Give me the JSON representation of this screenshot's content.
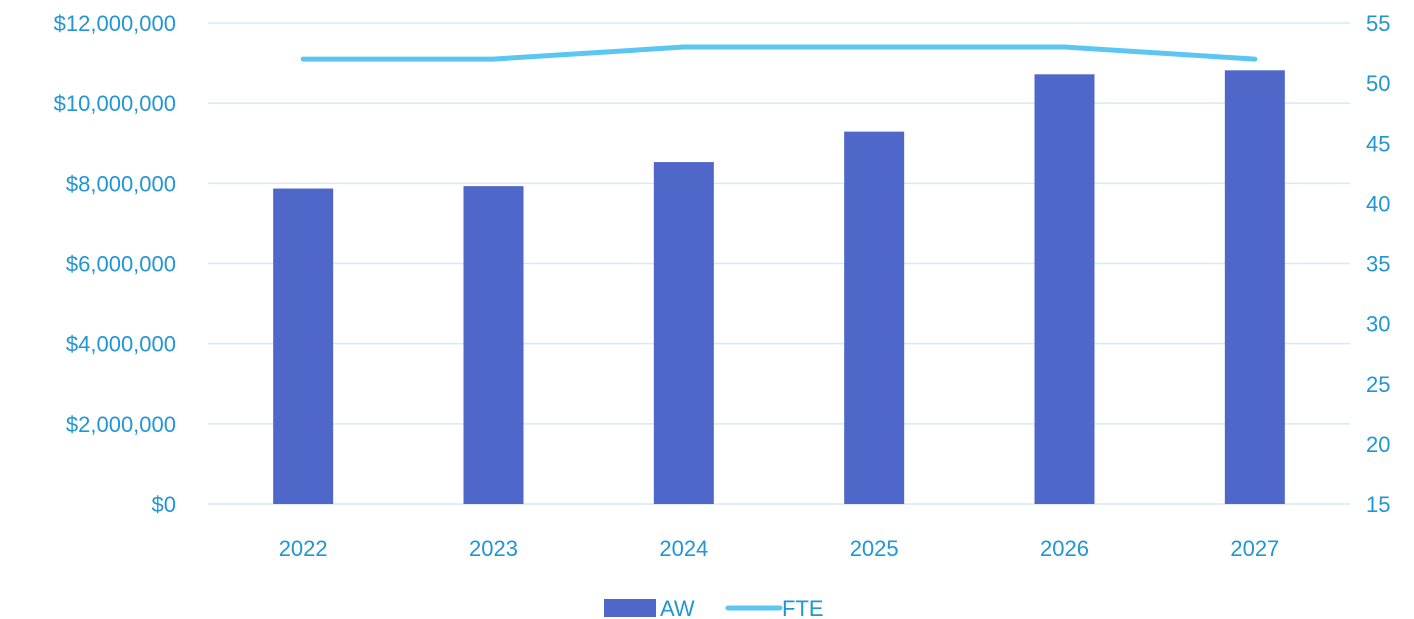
{
  "chart_data": {
    "type": "bar+line",
    "categories": [
      "2022",
      "2023",
      "2024",
      "2025",
      "2026",
      "2027"
    ],
    "series": [
      {
        "name": "AW",
        "type": "bar",
        "axis": "left",
        "color": "#4F67C8",
        "values": [
          7870000,
          7930000,
          8530000,
          9290000,
          10720000,
          10820000
        ]
      },
      {
        "name": "FTE",
        "type": "line",
        "axis": "right",
        "color": "#5CC6F2",
        "values": [
          52,
          52,
          53,
          53,
          53,
          52
        ]
      }
    ],
    "y_left": {
      "range": [
        0,
        12000000
      ],
      "tick_labels": [
        "$0",
        "$2,000,000",
        "$4,000,000",
        "$6,000,000",
        "$8,000,000",
        "$10,000,000",
        "$12,000,000"
      ]
    },
    "y_right": {
      "range": [
        15,
        55
      ],
      "tick_labels": [
        "15",
        "20",
        "25",
        "30",
        "35",
        "40",
        "45",
        "50",
        "55"
      ]
    },
    "grid": true,
    "legend_position": "bottom",
    "text_color": "#2196D3",
    "grid_color": "#D6EAF5"
  }
}
